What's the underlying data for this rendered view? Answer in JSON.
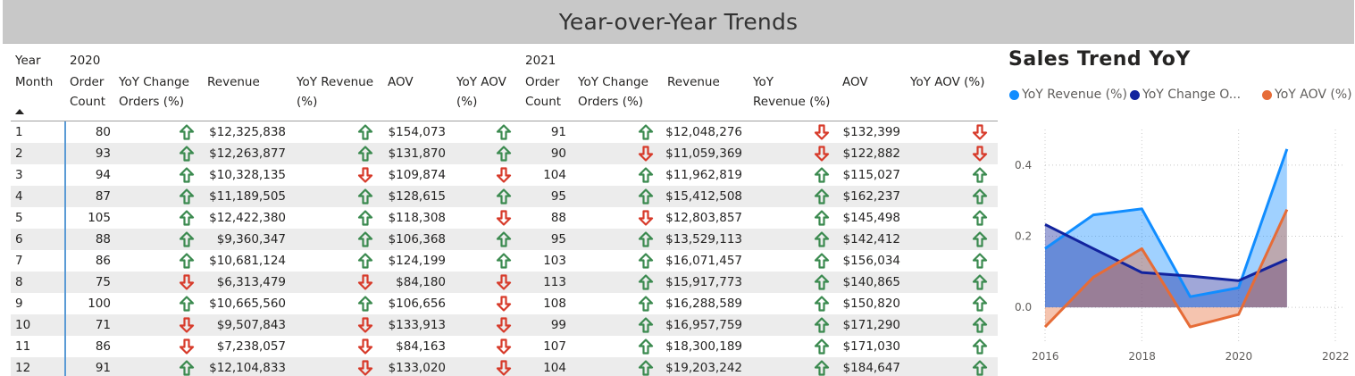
{
  "page_title": "Year-over-Year Trends",
  "table": {
    "headers": {
      "year": "Year",
      "month": "Month",
      "y2020": "2020",
      "y2021": "2021",
      "order_count_1": "Order",
      "order_count_2": "Count",
      "yoy_orders_1": "YoY Change",
      "yoy_orders_2": "Orders (%)",
      "revenue": "Revenue",
      "yoy_rev_1": "YoY Revenue",
      "yoy_rev_2": "(%)",
      "aov": "AOV",
      "yoy_aov_1": "YoY AOV",
      "yoy_aov_2": "(%)",
      "yoy2_rev_1": "YoY",
      "yoy2_rev_2": "Revenue (%)",
      "yoy_aov_full": "YoY AOV (%)"
    },
    "rows": [
      {
        "month": "1",
        "c20": "80",
        "o20": "up",
        "r20": "$12,325,838",
        "rv20": "up",
        "a20": "$154,073",
        "av20": "up",
        "c21": "91",
        "o21": "up",
        "r21": "$12,048,276",
        "rv21": "down",
        "a21": "$132,399",
        "av21": "down"
      },
      {
        "month": "2",
        "c20": "93",
        "o20": "up",
        "r20": "$12,263,877",
        "rv20": "up",
        "a20": "$131,870",
        "av20": "up",
        "c21": "90",
        "o21": "down",
        "r21": "$11,059,369",
        "rv21": "down",
        "a21": "$122,882",
        "av21": "down"
      },
      {
        "month": "3",
        "c20": "94",
        "o20": "up",
        "r20": "$10,328,135",
        "rv20": "down",
        "a20": "$109,874",
        "av20": "down",
        "c21": "104",
        "o21": "up",
        "r21": "$11,962,819",
        "rv21": "up",
        "a21": "$115,027",
        "av21": "up"
      },
      {
        "month": "4",
        "c20": "87",
        "o20": "up",
        "r20": "$11,189,505",
        "rv20": "up",
        "a20": "$128,615",
        "av20": "up",
        "c21": "95",
        "o21": "up",
        "r21": "$15,412,508",
        "rv21": "up",
        "a21": "$162,237",
        "av21": "up"
      },
      {
        "month": "5",
        "c20": "105",
        "o20": "up",
        "r20": "$12,422,380",
        "rv20": "up",
        "a20": "$118,308",
        "av20": "down",
        "c21": "88",
        "o21": "down",
        "r21": "$12,803,857",
        "rv21": "up",
        "a21": "$145,498",
        "av21": "up"
      },
      {
        "month": "6",
        "c20": "88",
        "o20": "up",
        "r20": "$9,360,347",
        "rv20": "up",
        "a20": "$106,368",
        "av20": "up",
        "c21": "95",
        "o21": "up",
        "r21": "$13,529,113",
        "rv21": "up",
        "a21": "$142,412",
        "av21": "up"
      },
      {
        "month": "7",
        "c20": "86",
        "o20": "up",
        "r20": "$10,681,124",
        "rv20": "up",
        "a20": "$124,199",
        "av20": "up",
        "c21": "103",
        "o21": "up",
        "r21": "$16,071,457",
        "rv21": "up",
        "a21": "$156,034",
        "av21": "up"
      },
      {
        "month": "8",
        "c20": "75",
        "o20": "down",
        "r20": "$6,313,479",
        "rv20": "down",
        "a20": "$84,180",
        "av20": "down",
        "c21": "113",
        "o21": "up",
        "r21": "$15,917,773",
        "rv21": "up",
        "a21": "$140,865",
        "av21": "up"
      },
      {
        "month": "9",
        "c20": "100",
        "o20": "up",
        "r20": "$10,665,560",
        "rv20": "up",
        "a20": "$106,656",
        "av20": "down",
        "c21": "108",
        "o21": "up",
        "r21": "$16,288,589",
        "rv21": "up",
        "a21": "$150,820",
        "av21": "up"
      },
      {
        "month": "10",
        "c20": "71",
        "o20": "down",
        "r20": "$9,507,843",
        "rv20": "down",
        "a20": "$133,913",
        "av20": "down",
        "c21": "99",
        "o21": "up",
        "r21": "$16,957,759",
        "rv21": "up",
        "a21": "$171,290",
        "av21": "up"
      },
      {
        "month": "11",
        "c20": "86",
        "o20": "down",
        "r20": "$7,238,057",
        "rv20": "down",
        "a20": "$84,163",
        "av20": "down",
        "c21": "107",
        "o21": "up",
        "r21": "$18,300,189",
        "rv21": "up",
        "a21": "$171,030",
        "av21": "up"
      },
      {
        "month": "12",
        "c20": "91",
        "o20": "up",
        "r20": "$12,104,833",
        "rv20": "down",
        "a20": "$133,020",
        "av20": "down",
        "c21": "104",
        "o21": "up",
        "r21": "$19,203,242",
        "rv21": "up",
        "a21": "$184,647",
        "av21": "up"
      }
    ]
  },
  "colors": {
    "up_arrow": "#3b8a4f",
    "down_arrow": "#d73a2a",
    "row_alt": "#ececec",
    "title_bar": "#c8c8c8"
  },
  "chart_data": {
    "type": "area",
    "title": "Sales Trend YoY",
    "legend_position": "top",
    "x": [
      2016,
      2017,
      2018,
      2019,
      2020,
      2021
    ],
    "x_ticks": [
      "2016",
      "2018",
      "2020",
      "2022"
    ],
    "y_ticks": [
      "0.0",
      "0.2",
      "0.4"
    ],
    "xlim": [
      2016,
      2022
    ],
    "ylim": [
      -0.07,
      0.5
    ],
    "grid": true,
    "series": [
      {
        "name": "YoY Revenue (%)",
        "legend_label": "YoY Revenue (%)",
        "color": "#118dff",
        "values": [
          0.165,
          0.26,
          0.277,
          0.03,
          0.055,
          0.445
        ]
      },
      {
        "name": "YoY Change Orders (%)",
        "legend_label": "YoY Change O...",
        "color": "#12239e",
        "values": [
          0.233,
          0.165,
          0.098,
          0.088,
          0.075,
          0.135
        ]
      },
      {
        "name": "YoY AOV (%)",
        "legend_label": "YoY AOV (%)",
        "color": "#e66c37",
        "values": [
          -0.055,
          0.085,
          0.165,
          -0.055,
          -0.02,
          0.275
        ]
      }
    ]
  }
}
